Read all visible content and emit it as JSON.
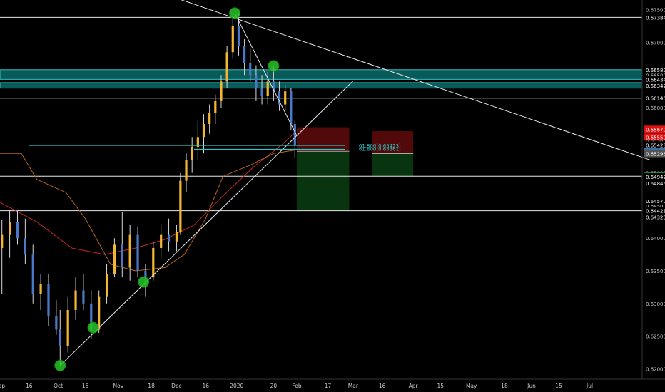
{
  "chart_data": {
    "type": "candlestick",
    "y_axis": {
      "range": [
        0.6184,
        0.6765
      ],
      "grid": false,
      "tick_labels": [
        "0.67500",
        "0.67000",
        "0.66500",
        "0.66000",
        "0.65500",
        "0.65000",
        "0.64500",
        "0.64000",
        "0.63500",
        "0.63000",
        "0.62500",
        "0.62000"
      ],
      "tick_values": [
        0.675,
        0.67,
        0.665,
        0.66,
        0.655,
        0.65,
        0.645,
        0.64,
        0.635,
        0.63,
        0.625,
        0.62
      ]
    },
    "x_axis": {
      "range": [
        "2019-09-01",
        "2020-07-28"
      ],
      "tick_labels": [
        "Sep",
        "16",
        "Oct",
        "15",
        "Nov",
        "18",
        "Dec",
        "16",
        "2020",
        "20",
        "Feb",
        "17",
        "Mar",
        "16",
        "Apr",
        "15",
        "May",
        "18",
        "Jun",
        "15",
        "Jul"
      ],
      "tick_dates": [
        "2019-09-01",
        "2019-09-16",
        "2019-10-01",
        "2019-10-15",
        "2019-11-01",
        "2019-11-18",
        "2019-12-01",
        "2019-12-16",
        "2020-01-01",
        "2020-01-20",
        "2020-02-01",
        "2020-02-17",
        "2020-03-01",
        "2020-03-16",
        "2020-04-01",
        "2020-04-15",
        "2020-05-01",
        "2020-05-18",
        "2020-06-01",
        "2020-06-15",
        "2020-07-01"
      ]
    },
    "candles": [
      {
        "date": "2019-09-02",
        "o": 0.6385,
        "h": 0.6428,
        "l": 0.6315,
        "c": 0.6405
      },
      {
        "date": "2019-09-06",
        "o": 0.6405,
        "h": 0.6443,
        "l": 0.637,
        "c": 0.6425
      },
      {
        "date": "2019-09-10",
        "o": 0.6425,
        "h": 0.6442,
        "l": 0.639,
        "c": 0.64
      },
      {
        "date": "2019-09-14",
        "o": 0.64,
        "h": 0.643,
        "l": 0.636,
        "c": 0.6375
      },
      {
        "date": "2019-09-18",
        "o": 0.6375,
        "h": 0.639,
        "l": 0.63,
        "c": 0.6315
      },
      {
        "date": "2019-09-22",
        "o": 0.6315,
        "h": 0.6345,
        "l": 0.629,
        "c": 0.633
      },
      {
        "date": "2019-09-26",
        "o": 0.633,
        "h": 0.6345,
        "l": 0.6265,
        "c": 0.628
      },
      {
        "date": "2019-09-30",
        "o": 0.628,
        "h": 0.6305,
        "l": 0.6252,
        "c": 0.626
      },
      {
        "date": "2019-10-02",
        "o": 0.626,
        "h": 0.629,
        "l": 0.6205,
        "c": 0.6235
      },
      {
        "date": "2019-10-06",
        "o": 0.6235,
        "h": 0.631,
        "l": 0.6225,
        "c": 0.629
      },
      {
        "date": "2019-10-10",
        "o": 0.629,
        "h": 0.634,
        "l": 0.6275,
        "c": 0.632
      },
      {
        "date": "2019-10-14",
        "o": 0.632,
        "h": 0.6345,
        "l": 0.629,
        "c": 0.63
      },
      {
        "date": "2019-10-18",
        "o": 0.63,
        "h": 0.632,
        "l": 0.6245,
        "c": 0.626
      },
      {
        "date": "2019-10-22",
        "o": 0.626,
        "h": 0.632,
        "l": 0.6255,
        "c": 0.631
      },
      {
        "date": "2019-10-26",
        "o": 0.631,
        "h": 0.636,
        "l": 0.63,
        "c": 0.6345
      },
      {
        "date": "2019-10-30",
        "o": 0.6345,
        "h": 0.64,
        "l": 0.634,
        "c": 0.639
      },
      {
        "date": "2019-11-03",
        "o": 0.639,
        "h": 0.644,
        "l": 0.634,
        "c": 0.6355
      },
      {
        "date": "2019-11-07",
        "o": 0.6355,
        "h": 0.642,
        "l": 0.6335,
        "c": 0.6405
      },
      {
        "date": "2019-11-11",
        "o": 0.6405,
        "h": 0.6418,
        "l": 0.634,
        "c": 0.635
      },
      {
        "date": "2019-11-15",
        "o": 0.635,
        "h": 0.636,
        "l": 0.631,
        "c": 0.634
      },
      {
        "date": "2019-11-19",
        "o": 0.634,
        "h": 0.6395,
        "l": 0.6335,
        "c": 0.6385
      },
      {
        "date": "2019-11-23",
        "o": 0.6385,
        "h": 0.642,
        "l": 0.637,
        "c": 0.6405
      },
      {
        "date": "2019-11-27",
        "o": 0.6405,
        "h": 0.643,
        "l": 0.638,
        "c": 0.6395
      },
      {
        "date": "2019-12-01",
        "o": 0.6395,
        "h": 0.642,
        "l": 0.638,
        "c": 0.641
      },
      {
        "date": "2019-12-03",
        "o": 0.641,
        "h": 0.65,
        "l": 0.6405,
        "c": 0.6488
      },
      {
        "date": "2019-12-06",
        "o": 0.6488,
        "h": 0.653,
        "l": 0.647,
        "c": 0.652
      },
      {
        "date": "2019-12-09",
        "o": 0.652,
        "h": 0.6555,
        "l": 0.65,
        "c": 0.654
      },
      {
        "date": "2019-12-12",
        "o": 0.654,
        "h": 0.658,
        "l": 0.652,
        "c": 0.6555
      },
      {
        "date": "2019-12-15",
        "o": 0.6555,
        "h": 0.659,
        "l": 0.653,
        "c": 0.6575
      },
      {
        "date": "2019-12-18",
        "o": 0.6575,
        "h": 0.6605,
        "l": 0.656,
        "c": 0.6592
      },
      {
        "date": "2019-12-21",
        "o": 0.6592,
        "h": 0.662,
        "l": 0.6575,
        "c": 0.661
      },
      {
        "date": "2019-12-24",
        "o": 0.661,
        "h": 0.665,
        "l": 0.66,
        "c": 0.664
      },
      {
        "date": "2019-12-27",
        "o": 0.664,
        "h": 0.6695,
        "l": 0.663,
        "c": 0.6685
      },
      {
        "date": "2019-12-30",
        "o": 0.6685,
        "h": 0.674,
        "l": 0.6675,
        "c": 0.6725
      },
      {
        "date": "2020-01-02",
        "o": 0.6725,
        "h": 0.6745,
        "l": 0.668,
        "c": 0.6695
      },
      {
        "date": "2020-01-05",
        "o": 0.6695,
        "h": 0.6705,
        "l": 0.665,
        "c": 0.6668
      },
      {
        "date": "2020-01-08",
        "o": 0.6668,
        "h": 0.669,
        "l": 0.664,
        "c": 0.665
      },
      {
        "date": "2020-01-11",
        "o": 0.665,
        "h": 0.6665,
        "l": 0.661,
        "c": 0.663
      },
      {
        "date": "2020-01-14",
        "o": 0.663,
        "h": 0.665,
        "l": 0.6605,
        "c": 0.6618
      },
      {
        "date": "2020-01-17",
        "o": 0.6618,
        "h": 0.6655,
        "l": 0.6605,
        "c": 0.664
      },
      {
        "date": "2020-01-20",
        "o": 0.664,
        "h": 0.6665,
        "l": 0.661,
        "c": 0.6625
      },
      {
        "date": "2020-01-23",
        "o": 0.6625,
        "h": 0.664,
        "l": 0.6595,
        "c": 0.6605
      },
      {
        "date": "2020-01-26",
        "o": 0.6605,
        "h": 0.6635,
        "l": 0.6595,
        "c": 0.6625
      },
      {
        "date": "2020-01-29",
        "o": 0.6625,
        "h": 0.663,
        "l": 0.6565,
        "c": 0.6575
      },
      {
        "date": "2020-01-31",
        "o": 0.6575,
        "h": 0.658,
        "l": 0.6523,
        "c": 0.6543
      }
    ],
    "horizontal_lines": [
      0.67384,
      0.66146,
      0.65428,
      0.6495,
      0.64421
    ],
    "zone_bands": [
      [
        0.66434,
        0.66582
      ],
      [
        0.663,
        0.66384
      ]
    ],
    "trend_lines": [
      {
        "from": [
          "2019-10-02",
          0.6205
        ],
        "to": [
          "2020-03-01",
          0.6641
        ]
      },
      {
        "from": [
          "2019-11-15",
          0.6784
        ],
        "to": [
          "2020-08-01",
          0.652
        ]
      },
      {
        "from": [
          "2019-12-31",
          0.6745
        ],
        "to": [
          "2020-02-01",
          0.6557
        ]
      }
    ],
    "signal_circles": [
      [
        "2019-10-02",
        0.6205
      ],
      [
        "2019-10-19",
        0.6263
      ],
      [
        "2019-11-14",
        0.6333
      ],
      [
        "2019-12-31",
        0.6745
      ],
      [
        "2020-01-20",
        0.6664
      ]
    ],
    "moving_averages": [
      {
        "color": "#c62828",
        "points": [
          [
            "2019-09-01",
            0.6455
          ],
          [
            "2019-09-20",
            0.6425
          ],
          [
            "2019-10-08",
            0.6385
          ],
          [
            "2019-10-25",
            0.6375
          ],
          [
            "2019-11-10",
            0.6385
          ],
          [
            "2019-11-25",
            0.6398
          ],
          [
            "2019-12-10",
            0.642
          ],
          [
            "2019-12-25",
            0.6465
          ],
          [
            "2020-01-10",
            0.651
          ],
          [
            "2020-01-25",
            0.6545
          ],
          [
            "2020-01-31",
            0.6562
          ]
        ]
      },
      {
        "color": "#b5651d",
        "points": [
          [
            "2019-09-01",
            0.653
          ],
          [
            "2019-09-12",
            0.653
          ],
          [
            "2019-09-20",
            0.649
          ],
          [
            "2019-10-05",
            0.647
          ],
          [
            "2019-10-15",
            0.643
          ],
          [
            "2019-10-28",
            0.636
          ],
          [
            "2019-11-10",
            0.635
          ],
          [
            "2019-11-25",
            0.6355
          ],
          [
            "2019-12-05",
            0.6375
          ],
          [
            "2019-12-16",
            0.643
          ],
          [
            "2019-12-25",
            0.6495
          ],
          [
            "2020-01-08",
            0.6512
          ],
          [
            "2020-01-20",
            0.653
          ],
          [
            "2020-01-31",
            0.6535
          ]
        ]
      }
    ],
    "positions": [
      {
        "x0": "2020-02-01",
        "x1": "2020-02-28",
        "loss_top": 0.657,
        "entry": 0.65332,
        "target": 0.64421,
        "label": ""
      },
      {
        "x0": "2020-03-11",
        "x1": "2020-04-01",
        "loss_top": 0.6564,
        "entry": 0.65296,
        "target": 0.6495,
        "label": ""
      }
    ],
    "fib_labels": [
      "61.800(0.65423)",
      "61.800(0.65361)"
    ],
    "price_tags": [
      {
        "value": 0.67384,
        "text": "0.67384",
        "color": "#000000",
        "text_color": "#ffffff"
      },
      {
        "value": 0.66582,
        "text": "0.66582",
        "color": "#000000",
        "text_color": "#ffffff"
      },
      {
        "value": 0.66434,
        "text": "0.66434",
        "color": "#000000",
        "text_color": "#ffffff"
      },
      {
        "value": 0.66342,
        "text": "0.66342",
        "color": "#000000",
        "text_color": "#ffffff"
      },
      {
        "value": 0.66146,
        "text": "0.66146",
        "color": "#000000",
        "text_color": "#ffffff"
      },
      {
        "value": 0.6567,
        "text": "0.65670",
        "color": "#e01010",
        "text_color": "#ffffff"
      },
      {
        "value": 0.6555,
        "text": "0.65550",
        "color": "#e01010",
        "text_color": "#ffffff"
      },
      {
        "value": 0.65428,
        "text": "0.65428",
        "color": "#000000",
        "text_color": "#ffffff"
      },
      {
        "value": 0.65332,
        "text": "0.65332",
        "color": "#3a6ea5",
        "text_color": "#ffffff"
      },
      {
        "value": 0.65302,
        "text": "0.65302",
        "color": "#555555",
        "text_color": "#ffffff"
      },
      {
        "value": 0.65296,
        "text": "0.65296",
        "color": "#555555",
        "text_color": "#ffffff"
      },
      {
        "value": 0.6495,
        "text": "0.64950",
        "color": "#1ea838",
        "text_color": "#ffffff"
      },
      {
        "value": 0.64942,
        "text": "0.64942",
        "color": "#000000",
        "text_color": "#ffffff"
      },
      {
        "value": 0.64846,
        "text": "0.64846",
        "color": "#000000",
        "text_color": "#ffffff"
      },
      {
        "value": 0.6457,
        "text": "0.64570",
        "color": "#000000",
        "text_color": "#ffffff"
      },
      {
        "value": 0.64428,
        "text": "0.64428",
        "color": "#1ea838",
        "text_color": "#ffffff"
      },
      {
        "value": 0.64421,
        "text": "0.64421",
        "color": "#000000",
        "text_color": "#ffffff"
      },
      {
        "value": 0.64325,
        "text": "0.64325",
        "color": "#000000",
        "text_color": "#ffffff"
      }
    ],
    "colors": {
      "background": "#000000",
      "candle_up": "#f2b632",
      "candle_down": "#4a78c8",
      "zone_fill": "#0d6a6a",
      "zone_stroke": "#2ec4c4",
      "line": "#e6e6e6",
      "loss_fill": "#5a0a0a",
      "profit_fill": "#0a3a12",
      "signal": "#27c427",
      "fib": "#2ec4c4",
      "axis_text": "#c8c8c8"
    },
    "legend": "none"
  }
}
